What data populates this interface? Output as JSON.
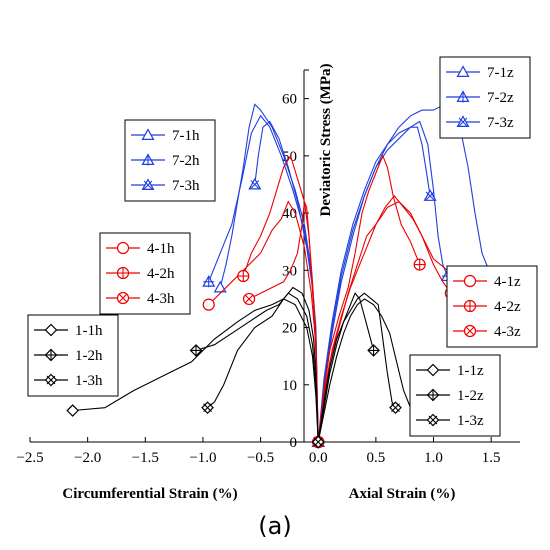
{
  "chart_data": {
    "type": "line",
    "xlim": [
      -2.5,
      1.75
    ],
    "ylim": [
      0,
      65
    ],
    "x_ticks": [
      -2.5,
      -2.0,
      -1.5,
      -1.0,
      -0.5,
      0.0,
      0.5,
      1.0,
      1.5
    ],
    "x_tick_labels": [
      "−2.5",
      "−2.0",
      "−1.5",
      "−1.0",
      "−0.5",
      "0.0",
      "0.5",
      "1.0",
      "1.5"
    ],
    "y_ticks": [
      0,
      10,
      20,
      30,
      40,
      50,
      60
    ],
    "y_tick_labels": [
      "0",
      "10",
      "20",
      "30",
      "40",
      "50",
      "60"
    ],
    "ylabel": "Deviatoric Stress (MPa)",
    "xlabel_left": "Circumferential Strain (%)",
    "xlabel_right": "Axial Strain (%)",
    "caption": "(a)",
    "colors": {
      "black": "#000000",
      "red": "#ee0000",
      "blue": "#1f3fe0"
    },
    "series": [
      {
        "name": "7-1h",
        "color": "#1f3fe0",
        "marker": "triangle",
        "points": [
          [
            0,
            0
          ],
          [
            -0.02,
            20
          ],
          [
            -0.06,
            30
          ],
          [
            -0.12,
            38
          ],
          [
            -0.2,
            44
          ],
          [
            -0.3,
            50
          ],
          [
            -0.4,
            55
          ],
          [
            -0.5,
            58
          ],
          [
            -0.55,
            59
          ],
          [
            -0.6,
            55
          ],
          [
            -0.65,
            48
          ],
          [
            -0.7,
            42
          ],
          [
            -0.75,
            36
          ],
          [
            -0.8,
            31
          ],
          [
            -0.85,
            27
          ]
        ]
      },
      {
        "name": "7-2h",
        "color": "#1f3fe0",
        "marker": "triangle-plus",
        "points": [
          [
            0,
            0
          ],
          [
            -0.02,
            19
          ],
          [
            -0.06,
            29
          ],
          [
            -0.12,
            37
          ],
          [
            -0.22,
            44
          ],
          [
            -0.32,
            50
          ],
          [
            -0.42,
            55
          ],
          [
            -0.5,
            57
          ],
          [
            -0.58,
            54
          ],
          [
            -0.66,
            46
          ],
          [
            -0.75,
            38
          ],
          [
            -0.85,
            33
          ],
          [
            -0.95,
            28
          ]
        ]
      },
      {
        "name": "7-3h",
        "color": "#1f3fe0",
        "marker": "triangle-x",
        "points": [
          [
            0,
            0
          ],
          [
            -0.02,
            18
          ],
          [
            -0.05,
            27
          ],
          [
            -0.1,
            34
          ],
          [
            -0.18,
            42
          ],
          [
            -0.26,
            48
          ],
          [
            -0.34,
            53
          ],
          [
            -0.42,
            56
          ],
          [
            -0.48,
            55
          ],
          [
            -0.52,
            50
          ],
          [
            -0.55,
            45
          ]
        ]
      },
      {
        "name": "4-1h",
        "color": "#ee0000",
        "marker": "circle",
        "points": [
          [
            0,
            0
          ],
          [
            -0.02,
            17
          ],
          [
            -0.06,
            26
          ],
          [
            -0.12,
            34
          ],
          [
            -0.2,
            40
          ],
          [
            -0.26,
            42
          ],
          [
            -0.32,
            39
          ],
          [
            -0.4,
            37
          ],
          [
            -0.5,
            33
          ],
          [
            -0.6,
            31
          ],
          [
            -0.75,
            28
          ],
          [
            -0.9,
            25
          ],
          [
            -0.95,
            24
          ]
        ]
      },
      {
        "name": "4-2h",
        "color": "#ee0000",
        "marker": "circle-plus",
        "points": [
          [
            0,
            0
          ],
          [
            -0.02,
            18
          ],
          [
            -0.05,
            28
          ],
          [
            -0.08,
            36
          ],
          [
            -0.12,
            42
          ],
          [
            -0.18,
            46
          ],
          [
            -0.24,
            50
          ],
          [
            -0.3,
            48
          ],
          [
            -0.36,
            44
          ],
          [
            -0.42,
            40
          ],
          [
            -0.5,
            36
          ],
          [
            -0.58,
            33
          ],
          [
            -0.65,
            29
          ]
        ]
      },
      {
        "name": "4-3h",
        "color": "#ee0000",
        "marker": "circle-x",
        "points": [
          [
            0,
            0
          ],
          [
            -0.02,
            15
          ],
          [
            -0.04,
            24
          ],
          [
            -0.06,
            30
          ],
          [
            -0.08,
            36
          ],
          [
            -0.1,
            41
          ],
          [
            -0.12,
            42
          ],
          [
            -0.14,
            38
          ],
          [
            -0.18,
            33
          ],
          [
            -0.24,
            30
          ],
          [
            -0.3,
            28
          ],
          [
            -0.4,
            27
          ],
          [
            -0.5,
            26
          ],
          [
            -0.6,
            25
          ]
        ]
      },
      {
        "name": "1-1h",
        "color": "#000000",
        "marker": "diamond",
        "points": [
          [
            0,
            0
          ],
          [
            -0.02,
            8
          ],
          [
            -0.05,
            15
          ],
          [
            -0.1,
            20
          ],
          [
            -0.2,
            24
          ],
          [
            -0.3,
            25
          ],
          [
            -0.4,
            24
          ],
          [
            -0.55,
            23
          ],
          [
            -0.7,
            21
          ],
          [
            -0.9,
            18
          ],
          [
            -1.1,
            14
          ],
          [
            -1.3,
            12
          ],
          [
            -1.6,
            9
          ],
          [
            -1.85,
            6
          ],
          [
            -2.13,
            5.5
          ]
        ]
      },
      {
        "name": "1-2h",
        "color": "#000000",
        "marker": "diamond-plus",
        "points": [
          [
            0,
            0
          ],
          [
            -0.02,
            10
          ],
          [
            -0.05,
            17
          ],
          [
            -0.1,
            22
          ],
          [
            -0.18,
            25
          ],
          [
            -0.26,
            26
          ],
          [
            -0.34,
            24
          ],
          [
            -0.45,
            23
          ],
          [
            -0.6,
            21
          ],
          [
            -0.75,
            19
          ],
          [
            -0.9,
            17
          ],
          [
            -1.06,
            16
          ]
        ]
      },
      {
        "name": "1-3h",
        "color": "#000000",
        "marker": "diamond-x",
        "points": [
          [
            0,
            0
          ],
          [
            -0.02,
            12
          ],
          [
            -0.04,
            18
          ],
          [
            -0.08,
            23
          ],
          [
            -0.14,
            26
          ],
          [
            -0.22,
            27
          ],
          [
            -0.3,
            25
          ],
          [
            -0.4,
            22
          ],
          [
            -0.55,
            20
          ],
          [
            -0.7,
            16
          ],
          [
            -0.82,
            10
          ],
          [
            -0.9,
            7
          ],
          [
            -0.96,
            6
          ]
        ]
      },
      {
        "name": "7-1z",
        "color": "#1f3fe0",
        "marker": "triangle",
        "points": [
          [
            0,
            0
          ],
          [
            0.05,
            9
          ],
          [
            0.12,
            19
          ],
          [
            0.2,
            28
          ],
          [
            0.3,
            36
          ],
          [
            0.4,
            43
          ],
          [
            0.5,
            48
          ],
          [
            0.6,
            52
          ],
          [
            0.7,
            55
          ],
          [
            0.8,
            57
          ],
          [
            0.9,
            58
          ],
          [
            1.0,
            58
          ],
          [
            1.1,
            59
          ],
          [
            1.18,
            57
          ],
          [
            1.24,
            54
          ],
          [
            1.3,
            48
          ],
          [
            1.36,
            40
          ],
          [
            1.42,
            33
          ],
          [
            1.5,
            29
          ],
          [
            1.57,
            28
          ]
        ]
      },
      {
        "name": "7-2z",
        "color": "#1f3fe0",
        "marker": "triangle-plus",
        "points": [
          [
            0,
            0
          ],
          [
            0.05,
            10
          ],
          [
            0.12,
            20
          ],
          [
            0.2,
            29
          ],
          [
            0.3,
            37
          ],
          [
            0.4,
            43
          ],
          [
            0.5,
            48
          ],
          [
            0.6,
            51
          ],
          [
            0.7,
            53
          ],
          [
            0.8,
            55
          ],
          [
            0.88,
            56
          ],
          [
            0.95,
            52
          ],
          [
            1.0,
            44
          ],
          [
            1.04,
            36
          ],
          [
            1.08,
            31
          ],
          [
            1.12,
            29
          ]
        ]
      },
      {
        "name": "7-3z",
        "color": "#1f3fe0",
        "marker": "triangle-x",
        "points": [
          [
            0,
            0
          ],
          [
            0.05,
            11
          ],
          [
            0.12,
            21
          ],
          [
            0.2,
            30
          ],
          [
            0.3,
            38
          ],
          [
            0.4,
            44
          ],
          [
            0.5,
            49
          ],
          [
            0.6,
            52
          ],
          [
            0.7,
            54
          ],
          [
            0.8,
            55
          ],
          [
            0.86,
            55
          ],
          [
            0.9,
            52
          ],
          [
            0.94,
            47
          ],
          [
            0.97,
            43
          ]
        ]
      },
      {
        "name": "4-1z",
        "color": "#ee0000",
        "marker": "circle",
        "points": [
          [
            0,
            0
          ],
          [
            0.05,
            8
          ],
          [
            0.12,
            16
          ],
          [
            0.2,
            22
          ],
          [
            0.28,
            27
          ],
          [
            0.36,
            31
          ],
          [
            0.42,
            34
          ],
          [
            0.5,
            38
          ],
          [
            0.6,
            41
          ],
          [
            0.7,
            42
          ],
          [
            0.8,
            40
          ],
          [
            0.9,
            36
          ],
          [
            1.0,
            31
          ],
          [
            1.08,
            28
          ],
          [
            1.15,
            26
          ]
        ]
      },
      {
        "name": "4-2z",
        "color": "#ee0000",
        "marker": "circle-plus",
        "points": [
          [
            0,
            0
          ],
          [
            0.05,
            9
          ],
          [
            0.1,
            16
          ],
          [
            0.18,
            22
          ],
          [
            0.26,
            27
          ],
          [
            0.32,
            33
          ],
          [
            0.38,
            40
          ],
          [
            0.44,
            44
          ],
          [
            0.5,
            47
          ],
          [
            0.56,
            50
          ],
          [
            0.6,
            48
          ],
          [
            0.65,
            43
          ],
          [
            0.72,
            38
          ],
          [
            0.8,
            35
          ],
          [
            0.88,
            31
          ]
        ]
      },
      {
        "name": "4-3z",
        "color": "#ee0000",
        "marker": "circle-x",
        "points": [
          [
            0,
            0
          ],
          [
            0.05,
            8
          ],
          [
            0.1,
            14
          ],
          [
            0.18,
            20
          ],
          [
            0.26,
            26
          ],
          [
            0.34,
            31
          ],
          [
            0.42,
            36
          ],
          [
            0.5,
            38
          ],
          [
            0.58,
            41
          ],
          [
            0.66,
            43
          ],
          [
            0.74,
            41
          ],
          [
            0.82,
            39
          ],
          [
            0.9,
            36
          ],
          [
            1.0,
            32
          ],
          [
            1.12,
            30
          ],
          [
            1.24,
            28
          ]
        ]
      },
      {
        "name": "1-1z",
        "color": "#000000",
        "marker": "diamond",
        "points": [
          [
            0,
            0
          ],
          [
            0.05,
            5
          ],
          [
            0.1,
            10
          ],
          [
            0.16,
            15
          ],
          [
            0.22,
            19
          ],
          [
            0.28,
            22
          ],
          [
            0.34,
            24
          ],
          [
            0.4,
            25
          ],
          [
            0.48,
            24
          ],
          [
            0.55,
            22
          ],
          [
            0.62,
            19
          ],
          [
            0.68,
            14
          ],
          [
            0.74,
            9
          ],
          [
            0.8,
            6
          ],
          [
            0.87,
            5.5
          ]
        ]
      },
      {
        "name": "1-2z",
        "color": "#000000",
        "marker": "diamond-plus",
        "points": [
          [
            0,
            0
          ],
          [
            0.05,
            6
          ],
          [
            0.1,
            12
          ],
          [
            0.16,
            17
          ],
          [
            0.22,
            21
          ],
          [
            0.28,
            24
          ],
          [
            0.32,
            26
          ],
          [
            0.36,
            25
          ],
          [
            0.4,
            22
          ],
          [
            0.44,
            19
          ],
          [
            0.48,
            16
          ]
        ]
      },
      {
        "name": "1-3z",
        "color": "#000000",
        "marker": "diamond-x",
        "points": [
          [
            0,
            0
          ],
          [
            0.05,
            7
          ],
          [
            0.1,
            13
          ],
          [
            0.16,
            18
          ],
          [
            0.22,
            21
          ],
          [
            0.28,
            23
          ],
          [
            0.34,
            25
          ],
          [
            0.4,
            26
          ],
          [
            0.46,
            25
          ],
          [
            0.52,
            24
          ],
          [
            0.56,
            18
          ],
          [
            0.6,
            12
          ],
          [
            0.64,
            7
          ],
          [
            0.67,
            6
          ]
        ]
      }
    ],
    "legends": [
      {
        "position": "upper-left",
        "entries": [
          "7-1h",
          "7-2h",
          "7-3h"
        ]
      },
      {
        "position": "middle-left",
        "entries": [
          "4-1h",
          "4-2h",
          "4-3h"
        ]
      },
      {
        "position": "lower-left",
        "entries": [
          "1-1h",
          "1-2h",
          "1-3h"
        ]
      },
      {
        "position": "upper-right",
        "entries": [
          "7-1z",
          "7-2z",
          "7-3z"
        ]
      },
      {
        "position": "middle-right",
        "entries": [
          "4-1z",
          "4-2z",
          "4-3z"
        ]
      },
      {
        "position": "lower-right",
        "entries": [
          "1-1z",
          "1-2z",
          "1-3z"
        ]
      }
    ]
  }
}
